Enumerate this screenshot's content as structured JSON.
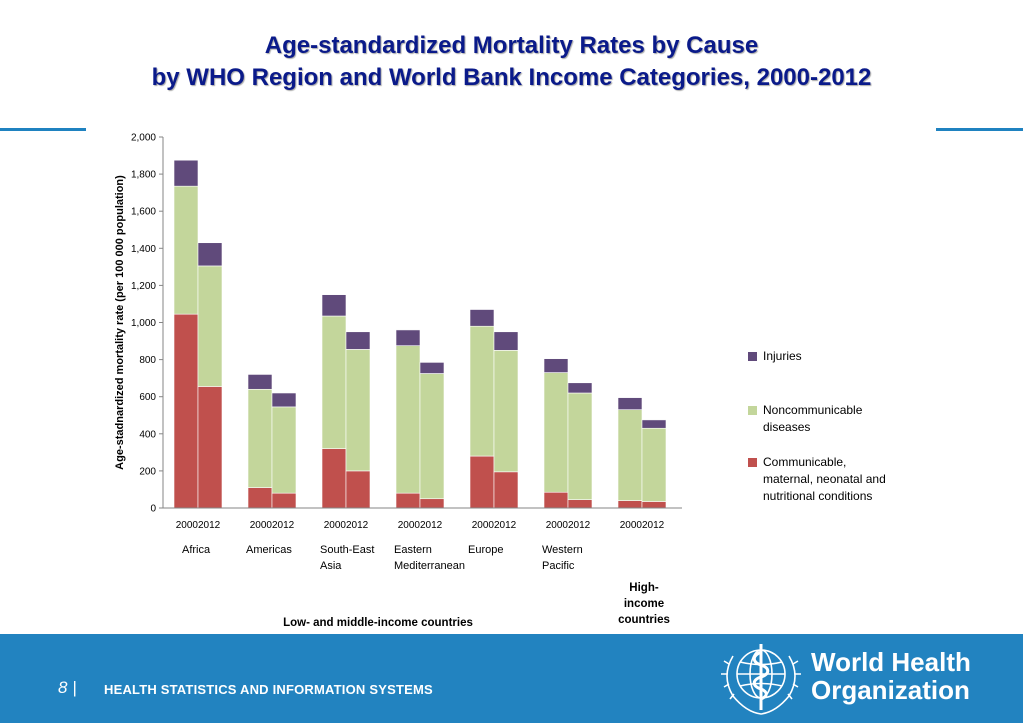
{
  "slide": {
    "title_line1": "Age-standardized Mortality Rates by Cause",
    "title_line2": "by WHO Region and World Bank Income Categories, 2000-2012"
  },
  "footer": {
    "page_number": "8",
    "separator": "|",
    "section": "HEALTH STATISTICS AND INFORMATION SYSTEMS",
    "org_line1": "World Health",
    "org_line2": "Organization"
  },
  "colors": {
    "title": "#0a1a8a",
    "footer_bar": "#2283c0",
    "communicable": "#c0504d",
    "noncommunicable": "#c3d69b",
    "injuries": "#604a7b"
  },
  "chart_data": {
    "type": "bar",
    "stacked": true,
    "ylabel": "Age-stadnardized mortality rate (per 100 000 population)",
    "ylim": [
      0,
      2000
    ],
    "yticks": [
      "0",
      "200",
      "400",
      "600",
      "800",
      "1,000",
      "1,200",
      "1,400",
      "1,600",
      "1,800",
      "2,000"
    ],
    "grid": false,
    "legend_position": "right",
    "groups": [
      {
        "label_lines": [
          "Africa"
        ],
        "years": [
          "2000",
          "2012"
        ]
      },
      {
        "label_lines": [
          "Americas"
        ],
        "years": [
          "2000",
          "2012"
        ]
      },
      {
        "label_lines": [
          "South-East",
          "Asia"
        ],
        "years": [
          "2000",
          "2012"
        ]
      },
      {
        "label_lines": [
          "Eastern",
          "Mediterranean"
        ],
        "years": [
          "2000",
          "2012"
        ]
      },
      {
        "label_lines": [
          "Europe"
        ],
        "years": [
          "2000",
          "2012"
        ]
      },
      {
        "label_lines": [
          "Western",
          "Pacific"
        ],
        "years": [
          "2000",
          "2012"
        ]
      },
      {
        "label_lines": [],
        "years": [
          "2000",
          "2012"
        ]
      }
    ],
    "series": [
      {
        "name_lines": [
          "Communicable,",
          "maternal, neonatal and",
          "nutritional conditions"
        ],
        "color": "#c0504d",
        "values": [
          1045,
          655,
          110,
          80,
          320,
          200,
          80,
          50,
          280,
          195,
          85,
          45,
          40,
          35
        ]
      },
      {
        "name_lines": [
          "Noncommunicable",
          "diseases"
        ],
        "color": "#c3d69b",
        "values": [
          690,
          650,
          530,
          465,
          715,
          655,
          795,
          675,
          700,
          655,
          645,
          575,
          490,
          395
        ]
      },
      {
        "name_lines": [
          "Injuries"
        ],
        "color": "#604a7b",
        "values": [
          140,
          125,
          80,
          75,
          115,
          95,
          85,
          60,
          90,
          100,
          75,
          55,
          65,
          45
        ]
      }
    ],
    "category_groups": [
      {
        "label_lines": [
          "Low- and middle-income countries"
        ],
        "groups": [
          0,
          1,
          2,
          3,
          4,
          5
        ]
      },
      {
        "label_lines": [
          "High-",
          "income",
          "countries"
        ],
        "groups": [
          6
        ]
      }
    ]
  }
}
